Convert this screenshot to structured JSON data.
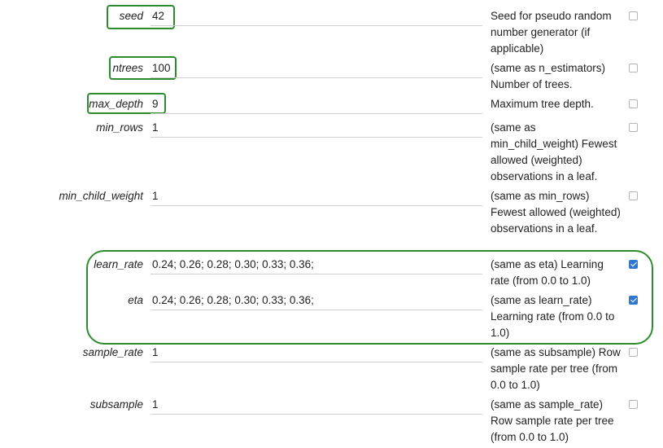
{
  "params": [
    {
      "name": "seed",
      "value": "42",
      "desc": "Seed for pseudo random number generator (if applicable)",
      "checked": false
    },
    {
      "name": "ntrees",
      "value": "100",
      "desc": "(same as n_estimators) Number of trees.",
      "checked": false
    },
    {
      "name": "max_depth",
      "value": "9",
      "desc": "Maximum tree depth.",
      "checked": false
    },
    {
      "name": "min_rows",
      "value": "1",
      "desc": "(same as min_child_weight) Fewest allowed (weighted) observations in a leaf.",
      "checked": false
    },
    {
      "name": "min_child_weight",
      "value": "1",
      "desc": "(same as min_rows) Fewest allowed (weighted) observations in a leaf.",
      "checked": false
    },
    {
      "name": "learn_rate",
      "value": "0.24; 0.26; 0.28; 0.30; 0.33; 0.36;",
      "desc": "(same as eta) Learning rate (from 0.0 to 1.0)",
      "checked": true
    },
    {
      "name": "eta",
      "value": "0.24; 0.26; 0.28; 0.30; 0.33; 0.36;",
      "desc": "(same as learn_rate) Learning rate (from 0.0 to 1.0)",
      "checked": true
    },
    {
      "name": "sample_rate",
      "value": "1",
      "desc": "(same as subsample) Row sample rate per tree (from 0.0 to 1.0)",
      "checked": false
    },
    {
      "name": "subsample",
      "value": "1",
      "desc": "(same as sample_rate) Row sample rate per tree (from 0.0 to 1.0)",
      "checked": false
    }
  ],
  "colors": {
    "highlight": "#2e8b2e",
    "checkbox_checked": "#2f78d2"
  }
}
